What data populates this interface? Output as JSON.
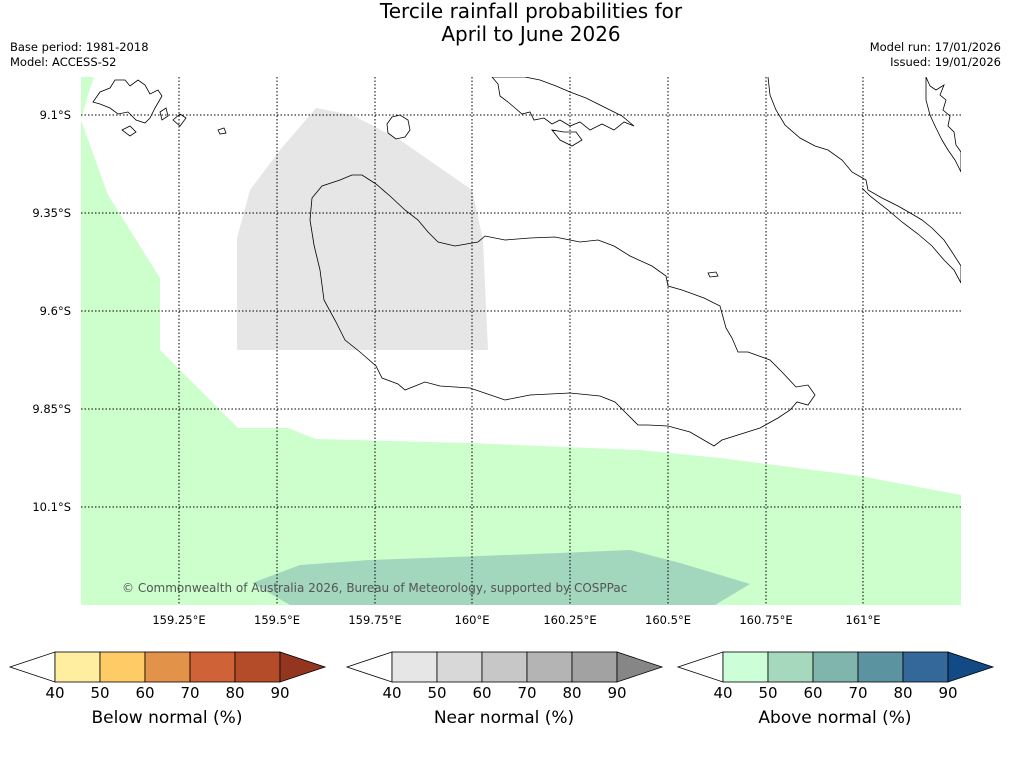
{
  "title_line1": "Tercile rainfall probabilities for",
  "title_line2": "April to June 2026",
  "base_period": "Base period: 1981-2018",
  "model": "Model: ACCESS-S2",
  "model_run": "Model run: 17/01/2026",
  "issued": "Issued: 19/01/2026",
  "copyright": "© Commonwealth of Australia 2026, Bureau of Meteorology, supported by COSPPac",
  "map": {
    "lon_ticks": [
      "159.25°E",
      "159.5°E",
      "159.75°E",
      "160°E",
      "160.25°E",
      "160.5°E",
      "160.75°E",
      "161°E"
    ],
    "lat_ticks": [
      "9.1°S",
      "9.35°S",
      "9.6°S",
      "9.85°S",
      "10.1°S"
    ],
    "colors": {
      "above_40_50": "#ccffcc",
      "above_50_60": "#a2d6bd",
      "near_40_50": "#e6e6e6",
      "land_outline": "#000000"
    }
  },
  "colorbars": [
    {
      "label": "Below normal (%)",
      "ticks": [
        "40",
        "50",
        "60",
        "70",
        "80",
        "90"
      ],
      "colors": [
        "#ffffff",
        "#ffeda0",
        "#fecb66",
        "#e3924a",
        "#cf6236",
        "#b44c2a",
        "#943520"
      ]
    },
    {
      "label": "Near normal (%)",
      "ticks": [
        "40",
        "50",
        "60",
        "70",
        "80",
        "90"
      ],
      "colors": [
        "#ffffff",
        "#e6e6e6",
        "#d8d8d8",
        "#c7c7c7",
        "#b4b4b4",
        "#a2a2a2",
        "#868686"
      ]
    },
    {
      "label": "Above normal (%)",
      "ticks": [
        "40",
        "50",
        "60",
        "70",
        "80",
        "90"
      ],
      "colors": [
        "#ffffff",
        "#ccffd8",
        "#a5d8bc",
        "#80b5ad",
        "#5c93a0",
        "#34679a",
        "#124a85"
      ]
    }
  ]
}
